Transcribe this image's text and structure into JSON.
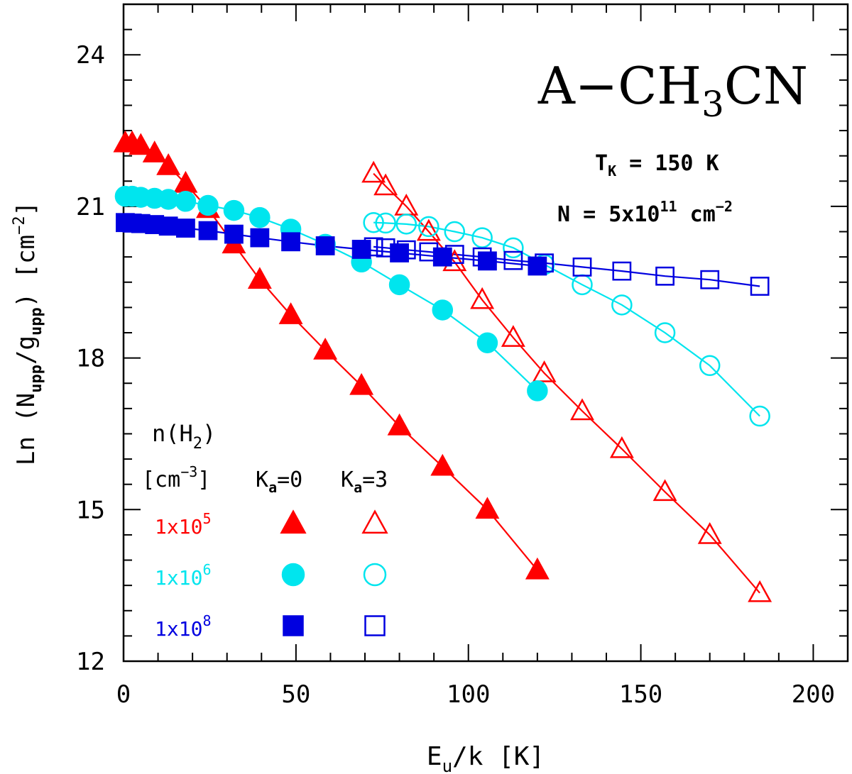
{
  "chart_data": {
    "type": "line",
    "title": "A−CH",
    "title_sub": "3",
    "title_tail": "CN",
    "annotation_tk_main": "T",
    "annotation_tk_sub": "K",
    "annotation_tk_tail": " = 150 K",
    "annotation_n_main": "N = 5x10",
    "annotation_n_exp": "11",
    "annotation_n_tail": " cm",
    "annotation_n_tail_exp": "−2",
    "xlabel_main": "E",
    "xlabel_sub": "u",
    "xlabel_tail": "/k [K]",
    "ylabel_pre": "Ln (N",
    "ylabel_sub1": "upp",
    "ylabel_mid": "/g",
    "ylabel_sub2": "upp",
    "ylabel_post": ") [cm",
    "ylabel_exp": "−2",
    "ylabel_end": "]",
    "xlim": [
      0,
      210
    ],
    "ylim": [
      12,
      25
    ],
    "xticks": [
      0,
      50,
      100,
      150,
      200
    ],
    "xtick_labels": [
      "0",
      "50",
      "100",
      "150",
      "200"
    ],
    "yticks": [
      12,
      15,
      18,
      21,
      24
    ],
    "ytick_labels": [
      "12",
      "15",
      "18",
      "21",
      "24"
    ],
    "legend": {
      "title_main": "n(H",
      "title_sub": "2",
      "title_tail": ")",
      "unit_pre": "[cm",
      "unit_exp": "−3",
      "unit_post": "]",
      "col1_main": "K",
      "col1_sub": "a",
      "col1_tail": "=0",
      "col2_main": "K",
      "col2_sub": "a",
      "col2_tail": "=3",
      "rows": [
        {
          "mantissa": "1x10",
          "exp": "5",
          "color": "#ff0000",
          "marker": "triangle"
        },
        {
          "mantissa": "1x10",
          "exp": "6",
          "color": "#00e5ee",
          "marker": "circle"
        },
        {
          "mantissa": "1x10",
          "exp": "8",
          "color": "#0000e0",
          "marker": "square"
        }
      ]
    },
    "series": [
      {
        "density": "1x10^5",
        "ka": "0",
        "color": "#ff0000",
        "marker": "triangle",
        "filled": true,
        "x": [
          0.5,
          2.5,
          5,
          9,
          13,
          18,
          24.5,
          32,
          39.5,
          48.5,
          58.5,
          69,
          80,
          92.5,
          105.5,
          120
        ],
        "y": [
          22.25,
          22.25,
          22.2,
          22.05,
          21.8,
          21.45,
          20.95,
          20.25,
          19.55,
          18.85,
          18.15,
          17.45,
          16.65,
          15.85,
          15.0,
          13.8
        ]
      },
      {
        "density": "1x10^5",
        "ka": "3",
        "color": "#ff0000",
        "marker": "triangle",
        "filled": false,
        "x": [
          72.5,
          76,
          82,
          88.5,
          96,
          104,
          113,
          122,
          133,
          144.5,
          157,
          170,
          184.5
        ],
        "y": [
          21.65,
          21.4,
          21.0,
          20.5,
          19.9,
          19.15,
          18.4,
          17.7,
          16.95,
          16.2,
          15.35,
          14.5,
          13.35
        ]
      },
      {
        "density": "1x10^6",
        "ka": "0",
        "color": "#00e5ee",
        "marker": "circle",
        "filled": true,
        "x": [
          0.5,
          2.5,
          5,
          9,
          13,
          18,
          24.5,
          32,
          39.5,
          48.5,
          58.5,
          69,
          80,
          92.5,
          105.5,
          120
        ],
        "y": [
          21.2,
          21.2,
          21.18,
          21.16,
          21.14,
          21.1,
          21.02,
          20.92,
          20.78,
          20.55,
          20.25,
          19.9,
          19.45,
          18.95,
          18.3,
          17.35
        ]
      },
      {
        "density": "1x10^6",
        "ka": "3",
        "color": "#00e5ee",
        "marker": "circle",
        "filled": false,
        "x": [
          72.5,
          76,
          82,
          88.5,
          96,
          104,
          113,
          122,
          133,
          144.5,
          157,
          170,
          184.5
        ],
        "y": [
          20.68,
          20.67,
          20.65,
          20.6,
          20.5,
          20.38,
          20.18,
          19.85,
          19.45,
          19.05,
          18.5,
          17.85,
          16.85
        ]
      },
      {
        "density": "1x10^8",
        "ka": "0",
        "color": "#0000e0",
        "marker": "square",
        "filled": true,
        "x": [
          0.5,
          2.5,
          5,
          9,
          13,
          18,
          24.5,
          32,
          39.5,
          48.5,
          58.5,
          69,
          80,
          92.5,
          105.5,
          120
        ],
        "y": [
          20.68,
          20.67,
          20.66,
          20.64,
          20.61,
          20.57,
          20.52,
          20.45,
          20.38,
          20.3,
          20.22,
          20.15,
          20.08,
          20.0,
          19.92,
          19.82
        ]
      },
      {
        "density": "1x10^8",
        "ka": "3",
        "color": "#0000e0",
        "marker": "square",
        "filled": false,
        "x": [
          72.5,
          76,
          82,
          88.5,
          96,
          104,
          113,
          122,
          133,
          144.5,
          157,
          170,
          184.5
        ],
        "y": [
          20.2,
          20.18,
          20.14,
          20.1,
          20.05,
          20.0,
          19.93,
          19.88,
          19.8,
          19.72,
          19.62,
          19.55,
          19.42
        ]
      }
    ]
  }
}
